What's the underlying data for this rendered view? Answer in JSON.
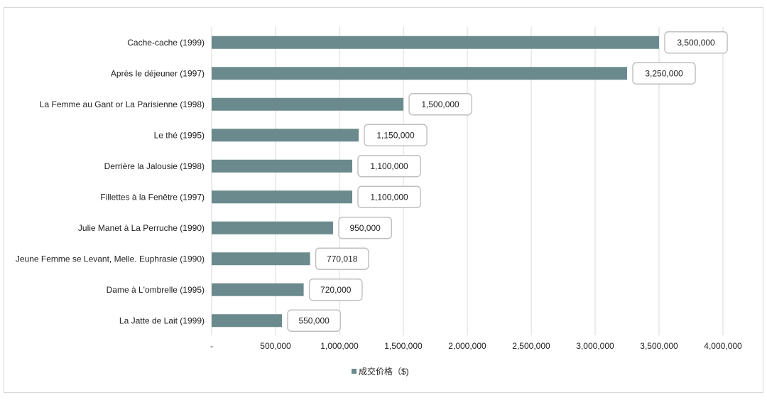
{
  "chart_data": {
    "type": "bar",
    "orientation": "horizontal",
    "categories": [
      "Cache-cache (1999)",
      "Après le déjeuner (1997)",
      "La Femme au Gant or La Parisienne (1998)",
      "Le thé (1995)",
      "Derrière la Jalousie (1998)",
      "Fillettes à la Fenêtre (1997)",
      "Julie Manet à La Perruche (1990)",
      "Jeune Femme se Levant, Melle. Euphrasie (1990)",
      "Dame à L'ombrelle (1995)",
      "La Jatte de Lait (1999)"
    ],
    "series": [
      {
        "name": "成交价格（$)",
        "color": "#6b8a8d",
        "values": [
          3500000,
          3250000,
          1500000,
          1150000,
          1100000,
          1100000,
          950000,
          770018,
          720000,
          550000
        ]
      }
    ],
    "data_labels": [
      "3,500,000",
      "3,250,000",
      "1,500,000",
      "1,150,000",
      "1,100,000",
      "1,100,000",
      "950,000",
      "770,018",
      "720,000",
      "550,000"
    ],
    "xlim": [
      0,
      4000000
    ],
    "x_ticks": [
      0,
      500000,
      1000000,
      1500000,
      2000000,
      2500000,
      3000000,
      3500000,
      4000000
    ],
    "x_tick_labels": [
      "-",
      "500,000",
      "1,000,000",
      "1,500,000",
      "2,000,000",
      "2,500,000",
      "3,000,000",
      "3,500,000",
      "4,000,000"
    ],
    "grid": true,
    "legend_position": "bottom",
    "title": "",
    "xlabel": "",
    "ylabel": ""
  }
}
